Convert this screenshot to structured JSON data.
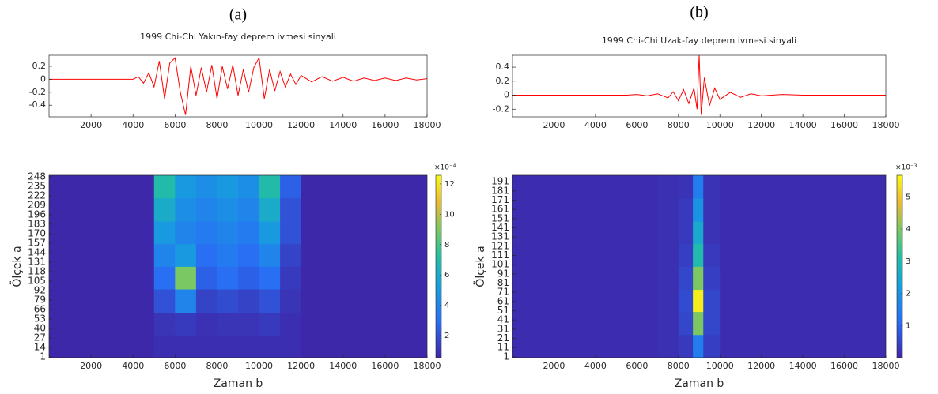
{
  "chart_data": [
    {
      "type": "line",
      "panel_label": "(a)",
      "title": "1999 Chi-Chi Yakın-fay deprem ivmesi sinyali",
      "x": [
        0,
        1000,
        2000,
        3000,
        4000,
        4250,
        4500,
        4750,
        5000,
        5250,
        5500,
        5750,
        6000,
        6250,
        6500,
        6750,
        7000,
        7250,
        7500,
        7750,
        8000,
        8250,
        8500,
        8750,
        9000,
        9250,
        9500,
        9750,
        10000,
        10250,
        10500,
        10750,
        11000,
        11250,
        11500,
        11750,
        12000,
        12500,
        13000,
        13500,
        14000,
        14500,
        15000,
        15500,
        16000,
        16500,
        17000,
        17500,
        18000
      ],
      "values": [
        0,
        0,
        0,
        0,
        0,
        0.04,
        -0.06,
        0.1,
        -0.12,
        0.28,
        -0.3,
        0.25,
        0.33,
        -0.2,
        -0.55,
        0.2,
        -0.25,
        0.18,
        -0.2,
        0.22,
        -0.3,
        0.2,
        -0.15,
        0.22,
        -0.25,
        0.15,
        -0.2,
        0.18,
        0.33,
        -0.3,
        0.15,
        -0.18,
        0.12,
        -0.12,
        0.08,
        -0.08,
        0.06,
        -0.04,
        0.04,
        -0.03,
        0.03,
        -0.03,
        0.02,
        -0.02,
        0.02,
        -0.02,
        0.02,
        -0.01,
        0.01
      ],
      "color": "#ff0000",
      "xlim": [
        0,
        18000
      ],
      "xticks": [
        2000,
        4000,
        6000,
        8000,
        10000,
        12000,
        14000,
        16000,
        18000
      ],
      "ylim": [
        -0.58,
        0.37
      ],
      "yticks": [
        -0.4,
        -0.2,
        0,
        0.2
      ]
    },
    {
      "type": "heatmap",
      "xlabel": "Zaman b",
      "ylabel": "Ölçek a",
      "colormap": "parula",
      "colorbar_exponent": "×10⁻⁴",
      "xbins": [
        0,
        1000,
        2000,
        3000,
        4000,
        5000,
        6000,
        7000,
        8000,
        9000,
        10000,
        11000,
        12000,
        13000,
        14000,
        15000,
        16000,
        17000,
        18000
      ],
      "ybins": [
        0,
        31,
        62,
        94,
        125,
        156,
        187,
        219,
        250
      ],
      "z": [
        [
          0.6,
          0.6,
          0.6,
          0.6,
          0.6,
          0.8,
          0.8,
          0.8,
          0.8,
          0.8,
          0.8,
          0.8,
          0.6,
          0.6,
          0.6,
          0.6,
          0.6,
          0.6
        ],
        [
          0.6,
          0.6,
          0.6,
          0.6,
          0.6,
          1,
          1.2,
          0.9,
          1,
          1,
          1.2,
          0.8,
          0.6,
          0.6,
          0.6,
          0.6,
          0.6,
          0.6
        ],
        [
          0.6,
          0.6,
          0.6,
          0.6,
          0.6,
          2,
          4,
          1.5,
          1.8,
          1.5,
          2,
          1,
          0.6,
          0.6,
          0.6,
          0.6,
          0.6,
          0.6
        ],
        [
          0.6,
          0.6,
          0.6,
          0.6,
          0.6,
          3,
          9,
          2.5,
          3,
          2.5,
          3,
          1.2,
          0.6,
          0.6,
          0.6,
          0.6,
          0.6,
          0.6
        ],
        [
          0.6,
          0.6,
          0.6,
          0.6,
          0.6,
          4,
          5,
          3,
          3.5,
          3,
          4,
          1.5,
          0.6,
          0.6,
          0.6,
          0.6,
          0.6,
          0.6
        ],
        [
          0.6,
          0.6,
          0.6,
          0.6,
          0.6,
          5,
          4,
          3.5,
          4,
          3.5,
          5,
          2,
          0.6,
          0.6,
          0.6,
          0.6,
          0.6,
          0.6
        ],
        [
          0.6,
          0.6,
          0.6,
          0.6,
          0.6,
          6,
          4.5,
          4,
          4.5,
          4,
          6,
          2,
          0.6,
          0.6,
          0.6,
          0.6,
          0.6,
          0.6
        ],
        [
          0.6,
          0.6,
          0.6,
          0.6,
          0.6,
          7,
          5,
          4.5,
          5,
          4.5,
          7,
          2.5,
          0.6,
          0.6,
          0.6,
          0.6,
          0.6,
          0.6
        ]
      ],
      "xlim": [
        0,
        18000
      ],
      "xticks": [
        2000,
        4000,
        6000,
        8000,
        10000,
        12000,
        14000,
        16000,
        18000
      ],
      "ylim": [
        0,
        250
      ],
      "yticks": [
        1,
        14,
        27,
        40,
        53,
        66,
        79,
        92,
        105,
        118,
        131,
        144,
        157,
        170,
        183,
        196,
        209,
        222,
        235,
        248
      ],
      "clim": [
        0.54,
        12.57
      ],
      "cticks": [
        2,
        4,
        6,
        8,
        10,
        12
      ]
    },
    {
      "type": "line",
      "panel_label": "(b)",
      "title": "1999 Chi-Chi Uzak-fay deprem ivmesi sinyali",
      "x": [
        0,
        2000,
        4000,
        5500,
        6000,
        6500,
        7000,
        7500,
        7750,
        8000,
        8250,
        8500,
        8750,
        8900,
        9000,
        9100,
        9250,
        9500,
        9750,
        10000,
        10500,
        11000,
        11500,
        12000,
        13000,
        14000,
        15000,
        16000,
        17000,
        18000
      ],
      "values": [
        0,
        0,
        0,
        0,
        0.01,
        -0.01,
        0.02,
        -0.04,
        0.05,
        -0.08,
        0.08,
        -0.12,
        0.1,
        -0.2,
        0.57,
        -0.28,
        0.25,
        -0.15,
        0.1,
        -0.06,
        0.04,
        -0.03,
        0.02,
        -0.01,
        0.01,
        0,
        0,
        0,
        0,
        0
      ],
      "color": "#ff0000",
      "xlim": [
        0,
        18000
      ],
      "xticks": [
        2000,
        4000,
        6000,
        8000,
        10000,
        12000,
        14000,
        16000,
        18000
      ],
      "ylim": [
        -0.31,
        0.57
      ],
      "yticks": [
        -0.2,
        0,
        0.2,
        0.4
      ]
    },
    {
      "type": "heatmap",
      "xlabel": "Zaman b",
      "ylabel": "Ölçek a",
      "colormap": "parula",
      "colorbar_exponent": "×10⁻³",
      "xbins": [
        0,
        7000,
        8000,
        8700,
        9200,
        10000,
        18000
      ],
      "ybins": [
        0,
        25,
        50,
        74,
        99,
        124,
        148,
        173,
        198
      ],
      "z": [
        [
          0.1,
          0.15,
          0.3,
          1.5,
          0.4,
          0.1
        ],
        [
          0.1,
          0.15,
          0.5,
          4,
          0.5,
          0.1
        ],
        [
          0.1,
          0.15,
          0.6,
          5.5,
          0.5,
          0.1
        ],
        [
          0.1,
          0.15,
          0.5,
          4,
          0.4,
          0.1
        ],
        [
          0.1,
          0.15,
          0.4,
          3,
          0.3,
          0.1
        ],
        [
          0.1,
          0.15,
          0.3,
          2.5,
          0.2,
          0.1
        ],
        [
          0.1,
          0.15,
          0.3,
          2,
          0.2,
          0.1
        ],
        [
          0.1,
          0.15,
          0.2,
          1.5,
          0.2,
          0.1
        ]
      ],
      "xlim": [
        0,
        18000
      ],
      "xticks": [
        2000,
        4000,
        6000,
        8000,
        10000,
        12000,
        14000,
        16000,
        18000
      ],
      "ylim": [
        0,
        198
      ],
      "yticks": [
        1,
        11,
        21,
        31,
        41,
        51,
        61,
        71,
        81,
        91,
        101,
        111,
        121,
        131,
        141,
        151,
        161,
        171,
        181,
        191
      ],
      "clim": [
        0,
        5.67
      ],
      "cticks": [
        1,
        2,
        3,
        4,
        5
      ]
    }
  ]
}
